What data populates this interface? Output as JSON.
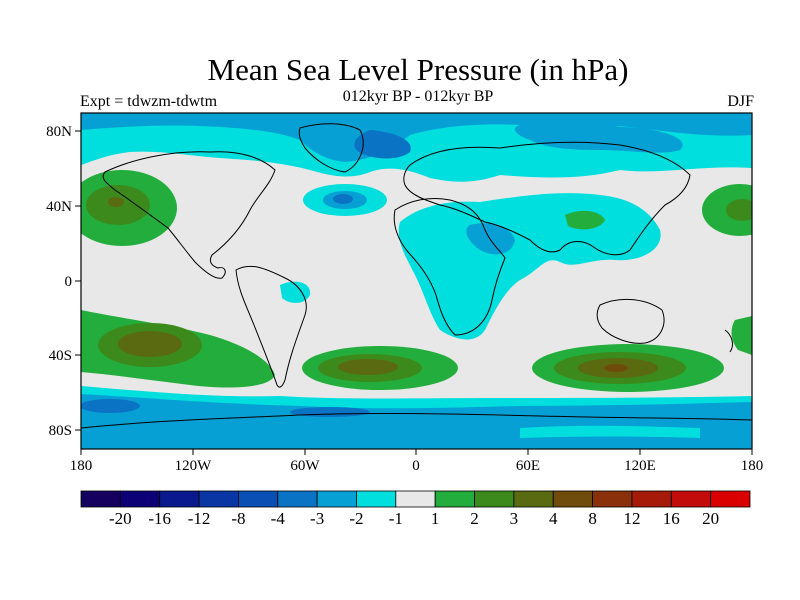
{
  "header": {
    "title": "Mean Sea Level Pressure (in hPa)",
    "subtitle": "012kyr BP - 012kyr BP",
    "left_label": "Expt = tdwzm-tdwtm",
    "right_label": "DJF"
  },
  "map": {
    "lon_ticks": [
      "180",
      "120W",
      "60W",
      "0",
      "60E",
      "120E",
      "180"
    ],
    "lat_ticks": [
      "80N",
      "40N",
      "0",
      "40S",
      "80S"
    ]
  },
  "colorbar": {
    "colors": [
      "#15005f",
      "#0d0077",
      "#0a1a8e",
      "#0a36a3",
      "#0a50b4",
      "#0a73c4",
      "#07a0d4",
      "#00dedd",
      "#e8e8e8",
      "#23ad3c",
      "#3c8a1c",
      "#5a6a10",
      "#704c0c",
      "#8a300a",
      "#a51a08",
      "#c20c0c",
      "#db0000"
    ],
    "labels": [
      "-20",
      "-16",
      "-12",
      "-8",
      "-4",
      "-3",
      "-2",
      "-1",
      "1",
      "2",
      "3",
      "4",
      "8",
      "12",
      "16",
      "20"
    ]
  },
  "legend_colors": {
    "land_neutral": "#e8e8e8",
    "cyan": "#00dedd",
    "light_blue": "#07a0d4",
    "blue": "#0a73c4",
    "green": "#23ad3c",
    "dark_green": "#3c8a1c",
    "olive": "#5a6a10",
    "brown": "#704c0c"
  }
}
